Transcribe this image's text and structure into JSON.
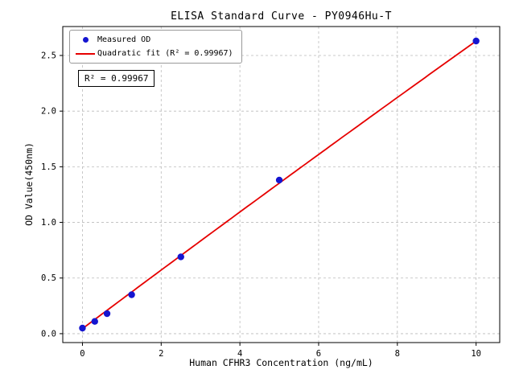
{
  "annotation": "R² = 0.99967",
  "chart_data": {
    "type": "scatter",
    "title": "ELISA Standard Curve - PY0946Hu-T",
    "xlabel": "Human CFHR3 Concentration (ng/mL)",
    "ylabel": "OD Value(450nm)",
    "xlim": [
      -0.5,
      10.6
    ],
    "ylim": [
      -0.08,
      2.76
    ],
    "x_ticks": [
      0,
      2,
      4,
      6,
      8,
      10
    ],
    "x_tick_labels": [
      "0",
      "2",
      "4",
      "6",
      "8",
      "10"
    ],
    "y_ticks": [
      0.0,
      0.5,
      1.0,
      1.5,
      2.0,
      2.5
    ],
    "y_tick_labels": [
      "0.0",
      "0.5",
      "1.0",
      "1.5",
      "2.0",
      "2.5"
    ],
    "grid": true,
    "grid_style": "dashed",
    "grid_color": "#bbbbbb",
    "legend_position": "upper-left",
    "series": [
      {
        "name": "Measured OD",
        "type": "scatter",
        "color": "#1515d0",
        "x": [
          0,
          0.313,
          0.625,
          1.25,
          2.5,
          5,
          10
        ],
        "y": [
          0.05,
          0.11,
          0.18,
          0.35,
          0.69,
          1.38,
          2.63
        ]
      },
      {
        "name": "Quadratic fit (R² = 0.99967)",
        "type": "line",
        "color": "#e60000",
        "fit": {
          "a": 0.045,
          "b": 0.2645,
          "c": -0.0006
        },
        "x_range": [
          0,
          10
        ]
      }
    ]
  }
}
